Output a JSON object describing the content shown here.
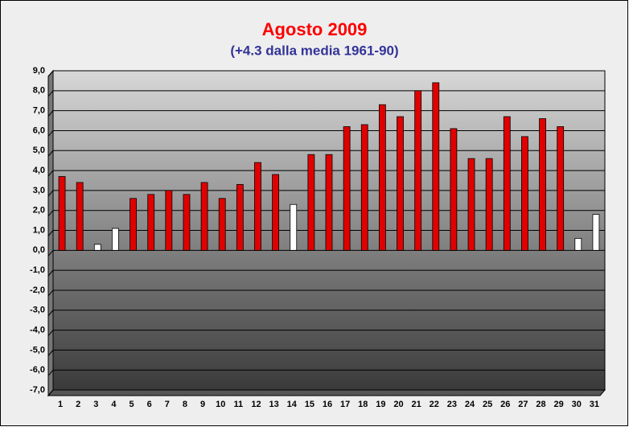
{
  "chart_data": {
    "type": "bar",
    "title": "Agosto 2009",
    "subtitle": "(+4.3 dalla media 1961-90)",
    "categories": [
      "1",
      "2",
      "3",
      "4",
      "5",
      "6",
      "7",
      "8",
      "9",
      "10",
      "11",
      "12",
      "13",
      "14",
      "15",
      "16",
      "17",
      "18",
      "19",
      "20",
      "21",
      "22",
      "23",
      "24",
      "25",
      "26",
      "27",
      "28",
      "29",
      "30",
      "31"
    ],
    "values": [
      3.7,
      3.4,
      0.3,
      1.1,
      2.6,
      2.8,
      3.0,
      2.8,
      3.4,
      2.6,
      3.3,
      4.4,
      3.8,
      2.3,
      4.8,
      4.8,
      6.2,
      6.3,
      7.3,
      6.7,
      8.0,
      8.4,
      6.1,
      4.6,
      4.6,
      6.7,
      5.7,
      6.6,
      6.2,
      0.6,
      1.8
    ],
    "colors": [
      "#e00000",
      "#e00000",
      "#ffffff",
      "#ffffff",
      "#e00000",
      "#e00000",
      "#e00000",
      "#e00000",
      "#e00000",
      "#e00000",
      "#e00000",
      "#e00000",
      "#e00000",
      "#ffffff",
      "#e00000",
      "#e00000",
      "#e00000",
      "#e00000",
      "#e00000",
      "#e00000",
      "#e00000",
      "#e00000",
      "#e00000",
      "#e00000",
      "#e00000",
      "#e00000",
      "#e00000",
      "#e00000",
      "#e00000",
      "#ffffff",
      "#ffffff"
    ],
    "ylim": [
      -7,
      9
    ],
    "yticks": [
      {
        "value": 9,
        "label": "9,0"
      },
      {
        "value": 8,
        "label": "8,0"
      },
      {
        "value": 7,
        "label": "7,0"
      },
      {
        "value": 6,
        "label": "6,0"
      },
      {
        "value": 5,
        "label": "5,0"
      },
      {
        "value": 4,
        "label": "4,0"
      },
      {
        "value": 3,
        "label": "3,0"
      },
      {
        "value": 2,
        "label": "2,0"
      },
      {
        "value": 1,
        "label": "1,0"
      },
      {
        "value": 0,
        "label": "0,0"
      },
      {
        "value": -1,
        "label": "-1,0"
      },
      {
        "value": -2,
        "label": "-2,0"
      },
      {
        "value": -3,
        "label": "-3,0"
      },
      {
        "value": -4,
        "label": "-4,0"
      },
      {
        "value": -5,
        "label": "-5,0"
      },
      {
        "value": -6,
        "label": "-6,0"
      },
      {
        "value": -7,
        "label": "-7,0"
      }
    ],
    "grid": true
  }
}
